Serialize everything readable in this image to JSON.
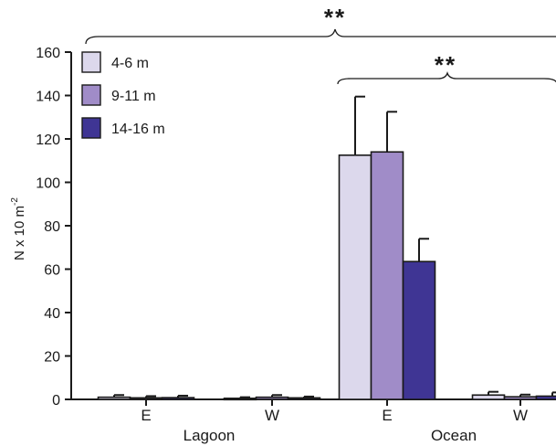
{
  "chart_data": {
    "type": "bar",
    "ylabel": "N x 10 m",
    "ylabel_sup": "-2",
    "ylim": [
      0,
      160
    ],
    "yticks": [
      0,
      20,
      40,
      60,
      80,
      100,
      120,
      140,
      160
    ],
    "groups": [
      {
        "name": "Lagoon",
        "categories": [
          "E",
          "W"
        ]
      },
      {
        "name": "Ocean",
        "categories": [
          "E",
          "W"
        ]
      }
    ],
    "categories": [
      "E",
      "W",
      "E",
      "W"
    ],
    "series": [
      {
        "name": "4-6 m",
        "color": "#dcd8ec",
        "values": [
          1.0,
          0.5,
          112.5,
          2.0
        ],
        "errors": [
          1.0,
          0.5,
          27.0,
          1.5
        ]
      },
      {
        "name": "9-11 m",
        "color": "#a08cc8",
        "values": [
          0.7,
          1.0,
          114.0,
          1.2
        ],
        "errors": [
          0.8,
          1.0,
          18.5,
          1.0
        ]
      },
      {
        "name": "14-16 m",
        "color": "#3f3594",
        "values": [
          0.8,
          0.7,
          63.5,
          1.5
        ],
        "errors": [
          0.9,
          0.6,
          10.5,
          1.7
        ]
      }
    ],
    "legend_position": "top-left",
    "annotations": [
      {
        "text": "**",
        "spans": "all"
      },
      {
        "text": "**",
        "spans": "Ocean"
      }
    ]
  }
}
